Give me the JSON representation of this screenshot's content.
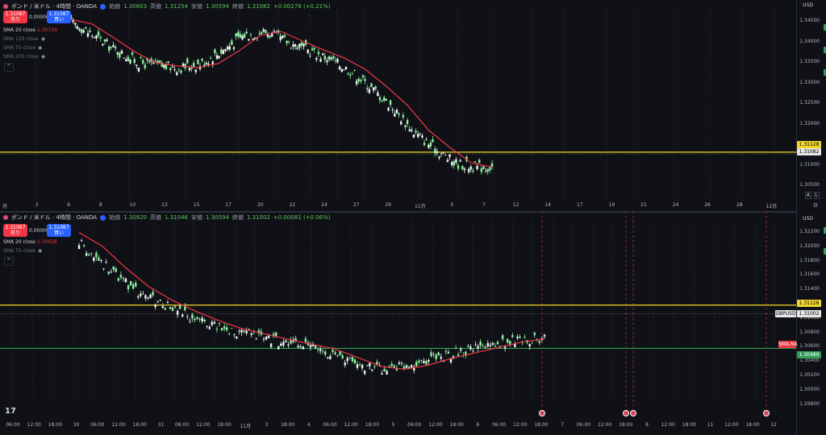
{
  "colors": {
    "background": "#0f1116",
    "candle_up": "#8cf0a0",
    "candle_down": "#e9f5ec",
    "sma": "#f23645",
    "level_yellow": "#f0d72d",
    "level_green": "#2e9e55",
    "event_line": "#f23645"
  },
  "top": {
    "title": "ポンド / 米ドル · 4時間 · OANDA",
    "ohlc": {
      "open_label": "始値",
      "open": "1.30803",
      "high_label": "高値",
      "high": "1.31254",
      "low_label": "安値",
      "low": "1.30594",
      "close_label": "終値",
      "close": "1.31082",
      "change": "+0.00278 (+0.21%)"
    },
    "sell": {
      "price": "1.31087",
      "label": "売り"
    },
    "spread": "0.00000",
    "buy": {
      "price": "1.31087",
      "label": "買い"
    },
    "indicators": [
      {
        "name": "SMA 20 close",
        "value": "1.30729"
      },
      {
        "name": "SMA 120 close",
        "value": ""
      },
      {
        "name": "SMA 75 close",
        "value": ""
      },
      {
        "name": "SMA 200 close",
        "value": ""
      }
    ],
    "collapse": "^",
    "currency": "USD",
    "yticks": [
      "1.34500",
      "1.34000",
      "1.33500",
      "1.33000",
      "1.32500",
      "1.32000",
      "1.31500",
      "1.31000",
      "1.30500"
    ],
    "price_tags": {
      "yellow": "1.31128",
      "white": "1.31082"
    },
    "xticks": [
      "月",
      "3",
      "6",
      "8",
      "10",
      "13",
      "15",
      "17",
      "20",
      "22",
      "24",
      "27",
      "29",
      "11月",
      "5",
      "7",
      "12",
      "14",
      "17",
      "19",
      "21",
      "24",
      "26",
      "28",
      "12月"
    ],
    "buttons": {
      "a": "A",
      "l": "L"
    }
  },
  "bottom": {
    "title": "ポンド / 米ドル · 4時間 · OANDA",
    "ohlc": {
      "open_label": "始値",
      "open": "1.30920",
      "high_label": "高値",
      "high": "1.31046",
      "low_label": "安値",
      "low": "1.30594",
      "close_label": "終値",
      "close": "1.31002",
      "change": "+0.00081 (+0.06%)"
    },
    "sell": {
      "price": "1.31087",
      "label": "売り"
    },
    "spread": "0.00000",
    "buy": {
      "price": "1.31087",
      "label": "買い"
    },
    "indicators": [
      {
        "name": "SMA 20 close",
        "value": "1.30628"
      },
      {
        "name": "SMA 75 close",
        "value": ""
      }
    ],
    "collapse": "^",
    "currency": "USD",
    "yticks": [
      "1.32200",
      "1.32000",
      "1.31800",
      "1.31600",
      "1.31400",
      "1.31200",
      "1.31000",
      "1.30800",
      "1.30600",
      "1.30400",
      "1.30200",
      "1.30000",
      "1.29800"
    ],
    "price_tags": {
      "yellow": "1.31128",
      "white": "1.31002",
      "green": "1.30489",
      "pair": "GBPUSD",
      "sma": "SMA,NA"
    },
    "xticks": [
      "06:00",
      "12:00",
      "18:00",
      "30",
      "06:00",
      "12:00",
      "18:00",
      "31",
      "06:00",
      "12:00",
      "18:00",
      "11月",
      "3",
      "18:00",
      "4",
      "06:00",
      "12:00",
      "18:00",
      "5",
      "06:00",
      "12:00",
      "18:00",
      "6",
      "06:00",
      "12:00",
      "18:00",
      "7",
      "06:00",
      "12:00",
      "18:00",
      "8",
      "12:00",
      "18:00",
      "11",
      "12:00",
      "18:00",
      "12"
    ],
    "logo": "17"
  },
  "chart_data": [
    {
      "type": "line",
      "title": "ポンド / 米ドル · 4時間 · OANDA",
      "xlabel": "",
      "ylabel": "",
      "ylim": [
        1.3015,
        1.3475
      ],
      "levels": [
        1.31128,
        1.31082
      ],
      "series": [
        {
          "name": "SMA 20 close",
          "x": [
            0,
            10,
            20,
            30,
            40,
            50,
            60,
            70,
            80,
            90,
            100,
            110,
            120,
            130,
            140,
            150,
            160,
            170,
            180,
            190,
            200
          ],
          "values": [
            1.3462,
            1.345,
            1.3415,
            1.3378,
            1.3348,
            1.334,
            1.3335,
            1.3346,
            1.338,
            1.342,
            1.343,
            1.3405,
            1.3382,
            1.336,
            1.333,
            1.3285,
            1.3235,
            1.317,
            1.3125,
            1.3085,
            1.3073
          ]
        }
      ]
    },
    {
      "type": "line",
      "title": "ポンド / 米ドル · 4時間 · OANDA",
      "xlabel": "",
      "ylabel": "",
      "ylim": [
        1.2978,
        1.3228
      ],
      "levels": [
        1.31128,
        1.31002,
        1.30489
      ],
      "series": [
        {
          "name": "SMA 20 close",
          "x": [
            0,
            10,
            20,
            30,
            40,
            50,
            60,
            70,
            80,
            90,
            100,
            110,
            120,
            130,
            140,
            150,
            160,
            170,
            180,
            190,
            200
          ],
          "values": [
            1.322,
            1.32,
            1.3168,
            1.314,
            1.312,
            1.3104,
            1.309,
            1.3078,
            1.307,
            1.3062,
            1.3055,
            1.3048,
            1.3035,
            1.3022,
            1.3018,
            1.3024,
            1.3034,
            1.3042,
            1.305,
            1.3058,
            1.3063
          ]
        }
      ]
    }
  ]
}
